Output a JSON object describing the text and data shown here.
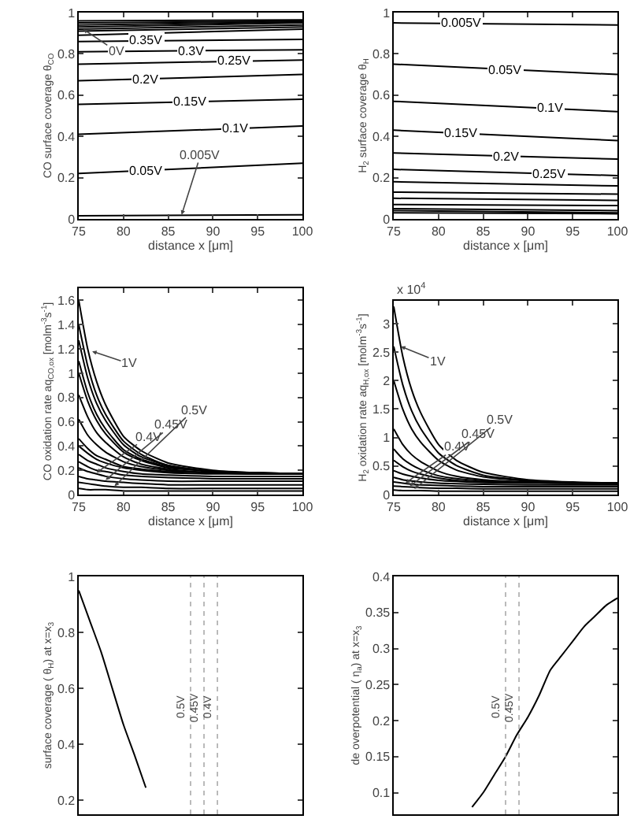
{
  "chart_data": [
    {
      "type": "line",
      "color": "#000000",
      "xlabel": "distance x [μm]",
      "ylabel": "CO surface coverage θ$_{CO}$",
      "x": [
        75,
        100
      ],
      "xlim": [
        75,
        100
      ],
      "xticks": [
        75,
        80,
        85,
        90,
        95,
        100
      ],
      "ylim": [
        0,
        1
      ],
      "yticks": [
        0,
        0.2,
        0.4,
        0.6,
        0.8,
        1
      ],
      "series": [
        {
          "values": [
            0.96,
            0.965
          ]
        },
        {
          "values": [
            0.95,
            0.96
          ]
        },
        {
          "values": [
            0.94,
            0.955
          ]
        },
        {
          "values": [
            0.93,
            0.95
          ]
        },
        {
          "values": [
            0.92,
            0.94
          ]
        },
        {
          "values": [
            0.91,
            0.93
          ]
        },
        {
          "values": [
            0.89,
            0.92
          ]
        },
        {
          "name": "0.35V",
          "values": [
            0.86,
            0.87
          ]
        },
        {
          "name": "0.3V",
          "values": [
            0.81,
            0.82
          ]
        },
        {
          "name": "0.25V",
          "values": [
            0.75,
            0.77
          ]
        },
        {
          "name": "0.2V",
          "values": [
            0.67,
            0.7
          ]
        },
        {
          "name": "0.15V",
          "values": [
            0.555,
            0.58
          ]
        },
        {
          "name": "0.1V",
          "values": [
            0.41,
            0.45
          ]
        },
        {
          "name": "0.05V",
          "values": [
            0.22,
            0.27
          ]
        },
        {
          "values": [
            0.015,
            0.02
          ]
        }
      ],
      "annotations": [
        {
          "text": "0V",
          "x": 75.5,
          "y": 0.92
        },
        {
          "text": "0.005V",
          "x": 86.5,
          "y": 0.02
        }
      ]
    },
    {
      "type": "line",
      "color": "#000000",
      "xlabel": "distance x [μm]",
      "ylabel": "H$_{2}$ surface coverage θ$_{H}$",
      "x": [
        75,
        100
      ],
      "xlim": [
        75,
        100
      ],
      "xticks": [
        75,
        80,
        85,
        90,
        95,
        100
      ],
      "ylim": [
        0,
        1
      ],
      "yticks": [
        0,
        0.2,
        0.4,
        0.6,
        0.8,
        1
      ],
      "series": [
        {
          "name": "0.005V",
          "values": [
            0.95,
            0.94
          ]
        },
        {
          "name": "0.05V",
          "values": [
            0.75,
            0.7
          ]
        },
        {
          "name": "0.1V",
          "values": [
            0.57,
            0.52
          ]
        },
        {
          "name": "0.15V",
          "values": [
            0.43,
            0.38
          ]
        },
        {
          "name": "0.2V",
          "values": [
            0.32,
            0.29
          ]
        },
        {
          "name": "0.25V",
          "values": [
            0.24,
            0.21
          ]
        },
        {
          "values": [
            0.18,
            0.16
          ]
        },
        {
          "values": [
            0.13,
            0.12
          ]
        },
        {
          "values": [
            0.1,
            0.09
          ]
        },
        {
          "values": [
            0.07,
            0.065
          ]
        },
        {
          "values": [
            0.05,
            0.04
          ]
        },
        {
          "values": [
            0.04,
            0.03
          ]
        },
        {
          "values": [
            0.03,
            0.025
          ]
        }
      ]
    },
    {
      "type": "line",
      "color": "#000000",
      "xlabel": "distance x [μm]",
      "ylabel": "CO oxidation rate aq$_{CO,ox}$ [molm$^{-3}$s$^{-1}$]",
      "x": [
        75,
        76,
        77,
        78,
        80,
        82,
        85,
        90,
        95,
        100
      ],
      "xlim": [
        75,
        100
      ],
      "xticks": [
        75,
        80,
        85,
        90,
        95,
        100
      ],
      "ylim": [
        0,
        1.7
      ],
      "yticks": [
        0,
        0.2,
        0.4,
        0.6,
        0.8,
        1,
        1.2,
        1.4,
        1.6
      ],
      "series": [
        {
          "values": [
            1.6,
            1.2,
            0.93,
            0.74,
            0.48,
            0.36,
            0.26,
            0.2,
            0.18,
            0.17
          ]
        },
        {
          "values": [
            1.4,
            1.06,
            0.82,
            0.66,
            0.44,
            0.33,
            0.24,
            0.19,
            0.18,
            0.17
          ]
        },
        {
          "values": [
            1.27,
            0.96,
            0.75,
            0.61,
            0.41,
            0.31,
            0.24,
            0.19,
            0.18,
            0.17
          ]
        },
        {
          "values": [
            1.1,
            0.84,
            0.66,
            0.54,
            0.37,
            0.29,
            0.23,
            0.19,
            0.17,
            0.17
          ]
        },
        {
          "values": [
            1.0,
            0.77,
            0.61,
            0.5,
            0.35,
            0.28,
            0.22,
            0.19,
            0.17,
            0.17
          ]
        },
        {
          "values": [
            0.82,
            0.64,
            0.51,
            0.43,
            0.31,
            0.25,
            0.21,
            0.18,
            0.17,
            0.17
          ]
        },
        {
          "values": [
            0.62,
            0.49,
            0.41,
            0.35,
            0.27,
            0.23,
            0.2,
            0.18,
            0.17,
            0.17
          ]
        },
        {
          "values": [
            0.46,
            0.38,
            0.32,
            0.29,
            0.23,
            0.21,
            0.19,
            0.18,
            0.17,
            0.17
          ]
        },
        {
          "values": [
            0.4,
            0.34,
            0.29,
            0.26,
            0.22,
            0.2,
            0.18,
            0.17,
            0.17,
            0.17
          ]
        },
        {
          "values": [
            0.33,
            0.28,
            0.25,
            0.22,
            0.19,
            0.17,
            0.16,
            0.15,
            0.15,
            0.15
          ]
        },
        {
          "values": [
            0.27,
            0.23,
            0.2,
            0.19,
            0.16,
            0.15,
            0.14,
            0.13,
            0.13,
            0.13
          ]
        },
        {
          "values": [
            0.22,
            0.19,
            0.17,
            0.15,
            0.13,
            0.12,
            0.11,
            0.11,
            0.11,
            0.11
          ]
        },
        {
          "values": [
            0.15,
            0.13,
            0.12,
            0.11,
            0.1,
            0.09,
            0.08,
            0.08,
            0.08,
            0.08
          ]
        },
        {
          "values": [
            0.1,
            0.09,
            0.08,
            0.07,
            0.06,
            0.06,
            0.05,
            0.05,
            0.05,
            0.05
          ]
        },
        {
          "values": [
            0.05,
            0.04,
            0.04,
            0.04,
            0.03,
            0.03,
            0.03,
            0.03,
            0.03,
            0.03
          ]
        }
      ],
      "annotations": [
        {
          "text": "1V",
          "x": 76.5,
          "y": 1.18
        },
        {
          "text": "0.4V",
          "x": 77,
          "y": 0.18
        },
        {
          "text": "0.45V",
          "x": 78,
          "y": 0.12
        },
        {
          "text": "0.5V",
          "x": 79,
          "y": 0.07
        }
      ]
    },
    {
      "type": "line",
      "color": "#000000",
      "xlabel": "distance x [μm]",
      "ylabel": "H$_{2}$ oxidation rate aq$_{H,ox}$ [molm$^{-3}$s$^{-1}$]",
      "x": [
        75,
        76,
        77,
        78,
        80,
        82,
        85,
        90,
        95,
        100
      ],
      "xlim": [
        75,
        100
      ],
      "xticks": [
        75,
        80,
        85,
        90,
        95,
        100
      ],
      "ylim": [
        0,
        3.4
      ],
      "yticks": [
        0,
        0.5,
        1,
        1.5,
        2,
        2.5,
        3
      ],
      "series": [
        {
          "values": [
            3.3,
            2.43,
            1.84,
            1.44,
            0.88,
            0.6,
            0.39,
            0.26,
            0.22,
            0.2
          ]
        },
        {
          "values": [
            2.6,
            1.93,
            1.47,
            1.16,
            0.73,
            0.51,
            0.34,
            0.25,
            0.21,
            0.2
          ]
        },
        {
          "values": [
            2.0,
            1.5,
            1.15,
            0.92,
            0.6,
            0.43,
            0.31,
            0.24,
            0.21,
            0.2
          ]
        },
        {
          "values": [
            1.15,
            0.88,
            0.7,
            0.58,
            0.41,
            0.32,
            0.26,
            0.22,
            0.2,
            0.2
          ]
        },
        {
          "values": [
            0.8,
            0.63,
            0.52,
            0.44,
            0.33,
            0.28,
            0.24,
            0.21,
            0.2,
            0.2
          ]
        },
        {
          "values": [
            0.6,
            0.49,
            0.41,
            0.36,
            0.29,
            0.25,
            0.22,
            0.21,
            0.2,
            0.2
          ]
        },
        {
          "values": [
            0.42,
            0.36,
            0.32,
            0.29,
            0.25,
            0.23,
            0.21,
            0.2,
            0.2,
            0.2
          ]
        },
        {
          "values": [
            0.3,
            0.26,
            0.24,
            0.22,
            0.2,
            0.19,
            0.18,
            0.17,
            0.17,
            0.17
          ]
        },
        {
          "values": [
            0.22,
            0.2,
            0.18,
            0.17,
            0.16,
            0.15,
            0.14,
            0.14,
            0.14,
            0.14
          ]
        },
        {
          "values": [
            0.15,
            0.14,
            0.13,
            0.12,
            0.11,
            0.11,
            0.1,
            0.1,
            0.1,
            0.1
          ]
        },
        {
          "values": [
            0.08,
            0.07,
            0.07,
            0.07,
            0.06,
            0.06,
            0.06,
            0.06,
            0.06,
            0.06
          ]
        }
      ],
      "annotations": [
        "x 10$^{4}$",
        {
          "text": "1V",
          "x": 75.8,
          "y": 2.6
        },
        {
          "text": "0.4V",
          "x": 76.3,
          "y": 0.2
        },
        {
          "text": "0.45V",
          "x": 76.8,
          "y": 0.15
        },
        {
          "text": "0.5V",
          "x": 77.3,
          "y": 0.1
        }
      ]
    },
    {
      "type": "line",
      "color": "#000000",
      "ylabel": "surface coverage ( θ$_{H}$) at x=x$_{3}$",
      "categories": [
        null,
        null,
        null,
        null,
        null,
        null,
        null,
        null,
        null,
        null,
        null,
        null,
        null,
        null,
        null,
        null,
        null,
        null,
        null,
        null,
        null
      ],
      "tick_labels": "y",
      "ylim": [
        0.15,
        1
      ],
      "yticks": [
        0.2,
        0.4,
        0.6,
        0.8,
        1
      ],
      "series": [
        {
          "values": [
            0.95,
            0.84,
            0.73,
            0.6,
            0.47,
            0.36,
            0.245,
            null,
            null,
            null,
            null,
            null,
            null,
            null,
            null,
            null,
            null,
            null,
            null,
            null,
            null
          ]
        }
      ],
      "annotations": [
        "0.5V",
        "0.45V",
        "0.4V"
      ]
    },
    {
      "type": "line",
      "color": "#000000",
      "ylabel": "de overpotential ( η$_{a}$) at x=x$_{3}$",
      "categories": [
        null,
        null,
        null,
        null,
        null,
        null,
        null,
        null,
        null,
        null,
        null,
        null,
        null,
        null,
        null,
        null,
        null,
        null,
        null,
        null,
        null
      ],
      "tick_labels": "y",
      "ylim": [
        0.07,
        0.4
      ],
      "yticks": [
        0.1,
        0.15,
        0.2,
        0.25,
        0.3,
        0.35,
        0.4
      ],
      "series": [
        {
          "values": [
            null,
            null,
            null,
            null,
            null,
            null,
            null,
            0.08,
            0.1,
            0.125,
            0.15,
            0.18,
            0.205,
            0.235,
            0.27,
            0.29,
            0.31,
            0.33,
            0.345,
            0.36,
            0.37
          ]
        }
      ],
      "annotations": [
        "0.5V",
        "0.45V"
      ]
    }
  ]
}
